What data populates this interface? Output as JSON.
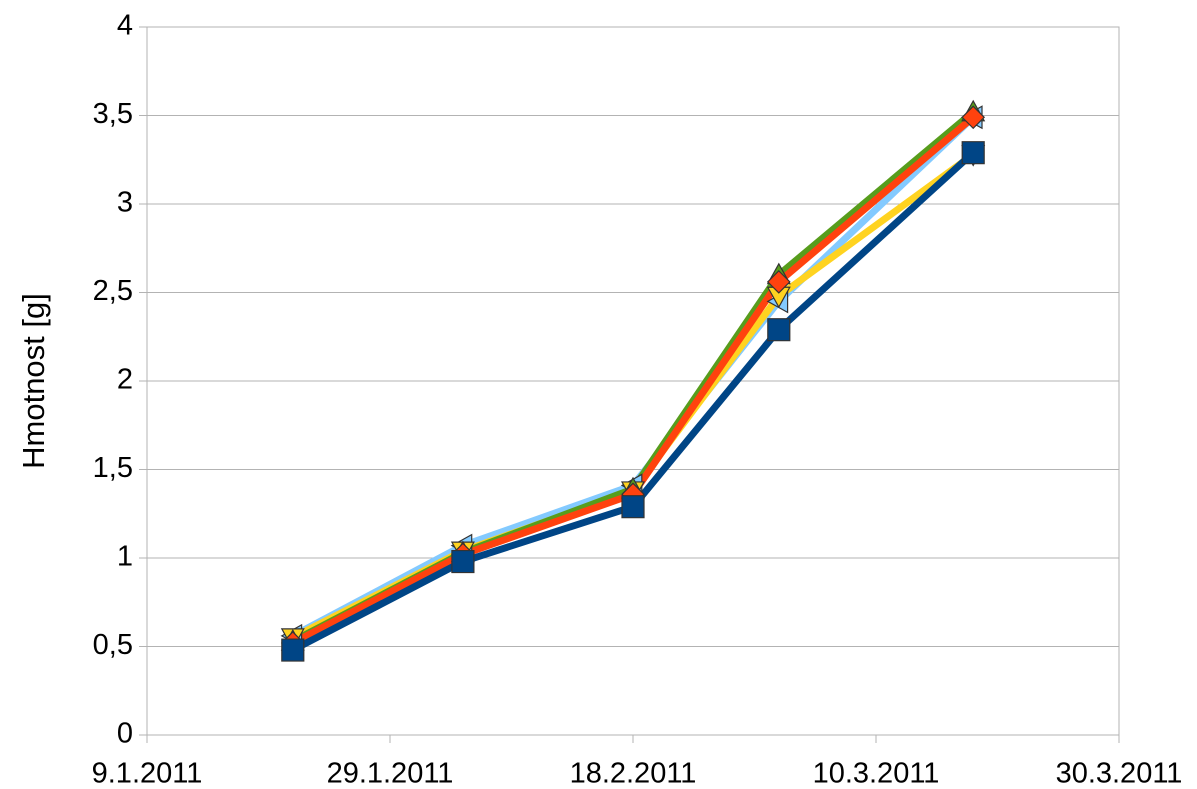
{
  "chart_data": {
    "type": "line",
    "y_label": "Hmotnost [g]",
    "x": [
      "2011-01-21",
      "2011-02-04",
      "2011-02-18",
      "2011-03-02",
      "2011-03-18"
    ],
    "xlim": [
      "2011-01-09",
      "2011-03-30"
    ],
    "xticks": [
      {
        "value": "2011-01-09",
        "label": "9.1.2011"
      },
      {
        "value": "2011-01-29",
        "label": "29.1.2011"
      },
      {
        "value": "2011-02-18",
        "label": "18.2.2011"
      },
      {
        "value": "2011-03-10",
        "label": "10.3.2011"
      },
      {
        "value": "2011-03-30",
        "label": "30.3.2011"
      }
    ],
    "ylim": [
      0,
      4
    ],
    "yticks": [
      0,
      {
        "value": 0.5,
        "label": "0,5"
      },
      1,
      {
        "value": 1.5,
        "label": "1,5"
      },
      2,
      {
        "value": 2.5,
        "label": "2,5"
      },
      3,
      {
        "value": 3.5,
        "label": "3,5"
      },
      4
    ],
    "grid": true,
    "series": [
      {
        "color": "#83caff",
        "marker": "triangle-left",
        "values": [
          0.56,
          1.07,
          1.41,
          2.45,
          3.49
        ]
      },
      {
        "color": "#ffd320",
        "marker": "triangle-down",
        "values": [
          0.55,
          1.04,
          1.38,
          2.48,
          3.28
        ]
      },
      {
        "color": "#579d1c",
        "marker": "triangle-up",
        "values": [
          0.53,
          1.03,
          1.39,
          2.6,
          3.52
        ]
      },
      {
        "color": "#ff420e",
        "marker": "diamond",
        "values": [
          0.52,
          1.02,
          1.36,
          2.56,
          3.49
        ]
      },
      {
        "color": "#004586",
        "marker": "square",
        "values": [
          0.48,
          0.98,
          1.29,
          2.29,
          3.29
        ]
      }
    ]
  }
}
